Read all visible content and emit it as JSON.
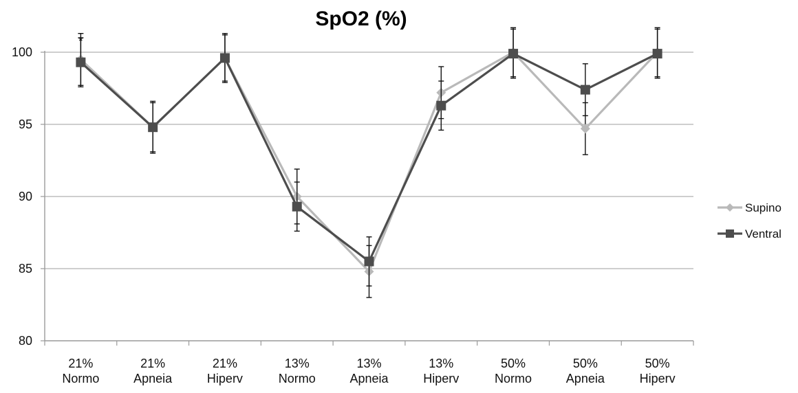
{
  "chart_data": {
    "type": "line",
    "title": "SpO2 (%)",
    "xlabel": "",
    "ylabel": "",
    "categories": [
      [
        "21%",
        "Normo"
      ],
      [
        "21%",
        "Apneia"
      ],
      [
        "21%",
        "Hiperv"
      ],
      [
        "13%",
        "Normo"
      ],
      [
        "13%",
        "Apneia"
      ],
      [
        "13%",
        "Hiperv"
      ],
      [
        "50%",
        "Normo"
      ],
      [
        "50%",
        "Apneia"
      ],
      [
        "50%",
        "Hiperv"
      ]
    ],
    "ylim": [
      80,
      100
    ],
    "yticks": [
      80,
      85,
      90,
      95,
      100
    ],
    "grid": true,
    "legend_position": "right",
    "annotations": [
      {
        "text": "*",
        "category_index": 0
      }
    ],
    "series": [
      {
        "name": "Supino",
        "color": "#b9b9b9",
        "marker": "diamond",
        "values": [
          99.5,
          94.8,
          99.6,
          90.0,
          84.8,
          97.2,
          100.0,
          94.7,
          100.0
        ],
        "error": [
          1.8,
          1.7,
          1.6,
          1.9,
          1.8,
          1.8,
          1.7,
          1.8,
          1.7
        ]
      },
      {
        "name": "Ventral",
        "color": "#4d4d4d",
        "marker": "square",
        "values": [
          99.3,
          94.8,
          99.6,
          89.3,
          85.5,
          96.3,
          99.9,
          97.4,
          99.9
        ],
        "error": [
          1.7,
          1.8,
          1.7,
          1.7,
          1.7,
          1.7,
          1.7,
          1.8,
          1.7
        ]
      }
    ]
  }
}
